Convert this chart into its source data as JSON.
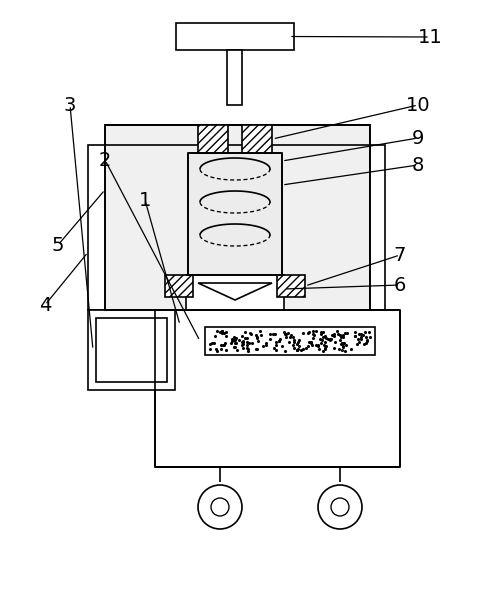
{
  "fig_width": 4.78,
  "fig_height": 6.15,
  "dpi": 100,
  "bg_color": "#ffffff",
  "line_color": "#000000",
  "lw": 1.2
}
